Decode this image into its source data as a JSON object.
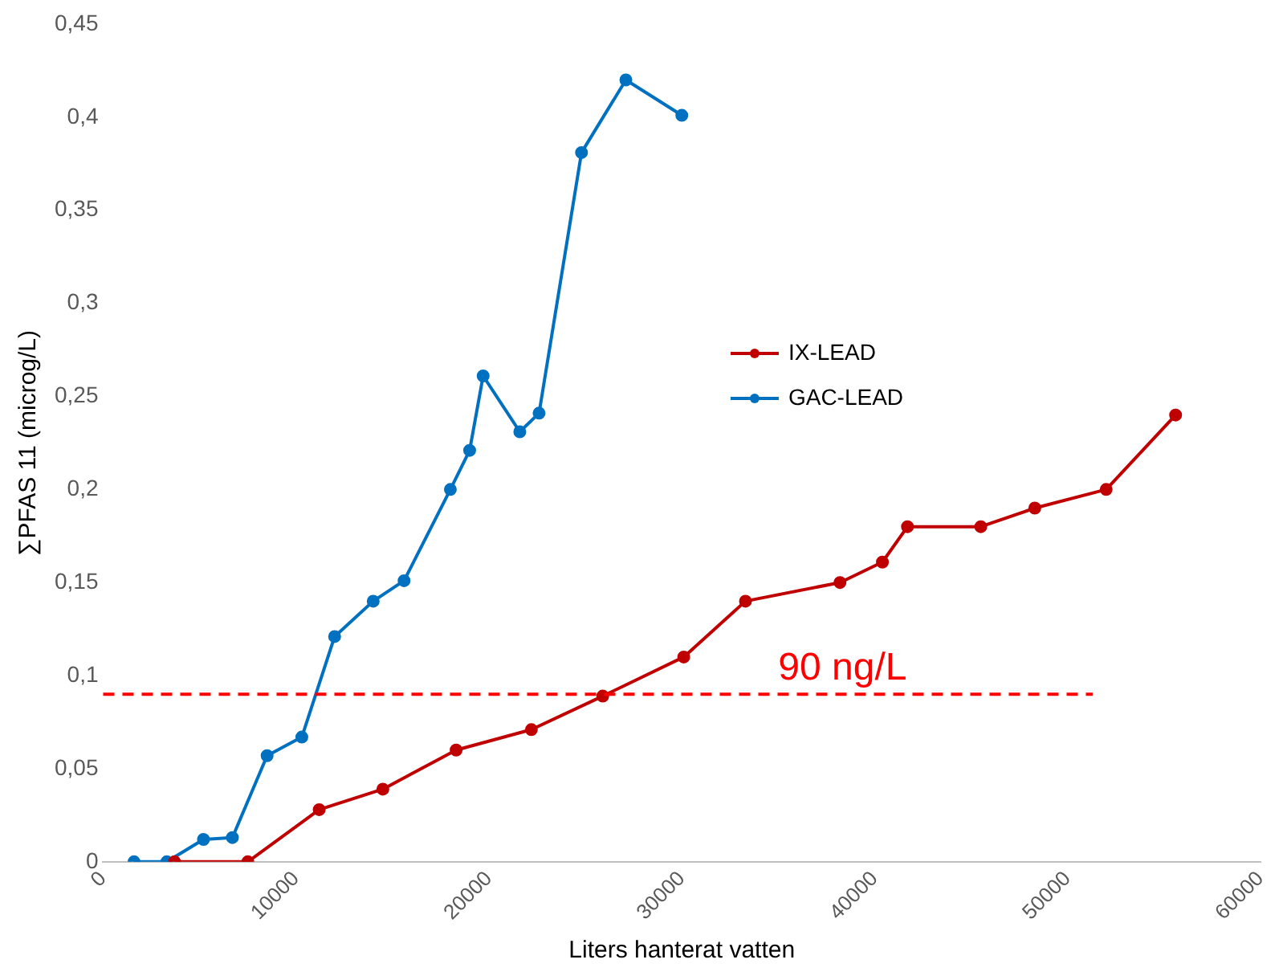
{
  "chart_data": {
    "type": "line",
    "xlabel": "Liters hanterat vatten",
    "ylabel": "∑PFAS 11 (microg/L)",
    "xlim": [
      0,
      60000
    ],
    "xticks": [
      0,
      10000,
      20000,
      30000,
      40000,
      50000,
      60000
    ],
    "ylim": [
      0,
      0.45
    ],
    "yticks": [
      {
        "value": 0,
        "label": "0"
      },
      {
        "value": 0.05,
        "label": "0,05"
      },
      {
        "value": 0.1,
        "label": "0,1"
      },
      {
        "value": 0.15,
        "label": "0,15"
      },
      {
        "value": 0.2,
        "label": "0,2"
      },
      {
        "value": 0.25,
        "label": "0,25"
      },
      {
        "value": 0.3,
        "label": "0,3"
      },
      {
        "value": 0.35,
        "label": "0,35"
      },
      {
        "value": 0.4,
        "label": "0,4"
      },
      {
        "value": 0.45,
        "label": "0,45"
      }
    ],
    "grid": false,
    "legend": "right",
    "marker": "circle",
    "line_style": "solid",
    "ref_lines": [
      {
        "axis": "y",
        "value": 0.09,
        "label": "90 ng/L",
        "color": "#ff0000",
        "line_style": "dashed"
      }
    ],
    "series": [
      {
        "name": "IX-LEAD",
        "color": "#c00000",
        "x": [
          3700,
          7500,
          11200,
          14500,
          18300,
          22200,
          25900,
          30100,
          33300,
          38200,
          40400,
          41700,
          45500,
          48300,
          52000,
          55600
        ],
        "values": [
          0,
          0,
          0.028,
          0.039,
          0.06,
          0.071,
          0.089,
          0.11,
          0.14,
          0.15,
          0.161,
          0.18,
          0.18,
          0.19,
          0.2,
          0.24
        ]
      },
      {
        "name": "GAC-LEAD",
        "color": "#0070c0",
        "x": [
          1600,
          3300,
          5200,
          6700,
          8500,
          10300,
          12000,
          14000,
          15600,
          18000,
          19000,
          19700,
          21600,
          22600,
          24800,
          27100,
          30000
        ],
        "values": [
          0,
          0,
          0.012,
          0.013,
          0.057,
          0.067,
          0.121,
          0.14,
          0.151,
          0.2,
          0.221,
          0.261,
          0.231,
          0.241,
          0.381,
          0.42,
          0.401
        ]
      }
    ]
  }
}
